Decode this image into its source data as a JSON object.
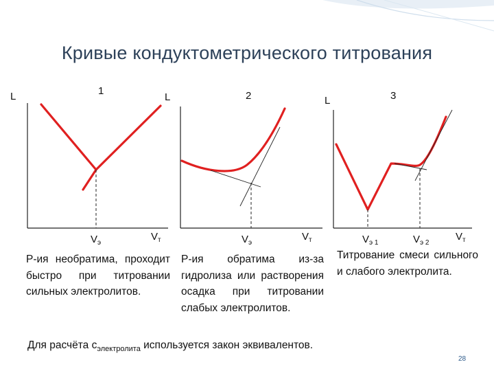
{
  "title": "Кривые кондуктометрического титрования",
  "charts": [
    {
      "number": "1",
      "ylabel": "L",
      "veq": "V",
      "veq_sub": "э",
      "vt": "V",
      "vt_sub": "т",
      "description": "Р-ия необратима, проходит быстро при титровании сильных электролитов."
    },
    {
      "number": "2",
      "ylabel": "L",
      "veq": "V",
      "veq_sub": "э",
      "vt": "V",
      "vt_sub": "т",
      "description": "Р-ия обратима из-за гидролиза или растворения осадка при титровании слабых электролитов."
    },
    {
      "number": "3",
      "ylabel": "L",
      "veq1": "V",
      "veq1_sub": "э 1",
      "veq2": "V",
      "veq2_sub": "э 2",
      "vt": "V",
      "vt_sub": "т",
      "description": "Титрование смеси сильного и слабого электролита."
    }
  ],
  "footer": {
    "prefix": "Для расчёта с",
    "sub": "электролита",
    "suffix": " используется закон эквивалентов."
  },
  "page_number": "28",
  "colors": {
    "curve": "#e02020",
    "title": "#2d4159",
    "accent": "#8fb8d8"
  }
}
